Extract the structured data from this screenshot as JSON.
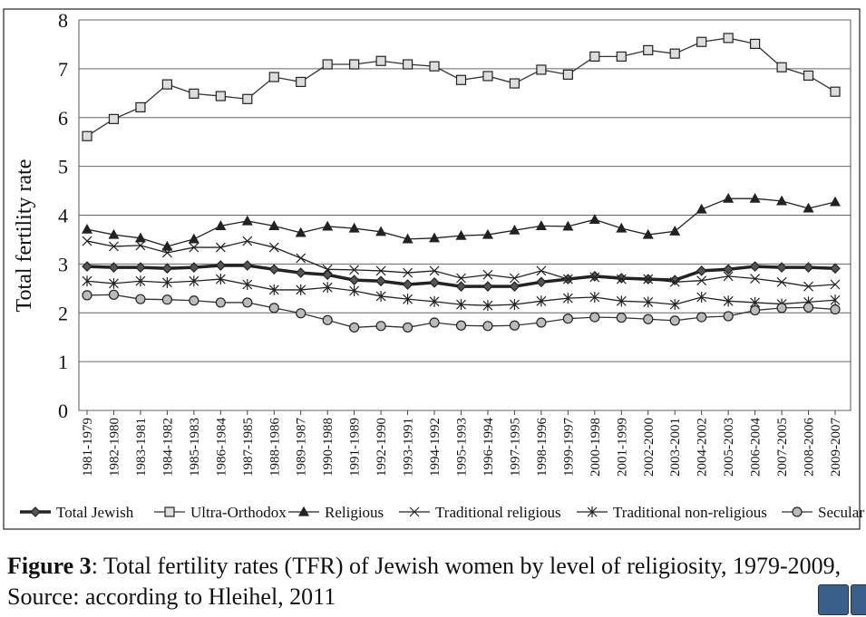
{
  "chart_data": {
    "type": "line",
    "y_label": "Total fertility rate",
    "categories": [
      "1981-1979",
      "1982-1980",
      "1983-1981",
      "1984-1982",
      "1985-1983",
      "1986-1984",
      "1987-1985",
      "1988-1986",
      "1989-1987",
      "1990-1988",
      "1991-1989",
      "1992-1990",
      "1993-1991",
      "1994-1992",
      "1995-1993",
      "1996-1994",
      "1997-1995",
      "1998-1996",
      "1999-1997",
      "2000-1998",
      "2001-1999",
      "2002-2000",
      "2003-2001",
      "2004-2002",
      "2005-2003",
      "2006-2004",
      "2007-2005",
      "2008-2006",
      "2009-2007"
    ],
    "series": [
      {
        "name": "Total Jewish",
        "color": "#222222",
        "marker": "diamond",
        "line_width": 3.5,
        "values": [
          2.95,
          2.93,
          2.93,
          2.91,
          2.93,
          2.97,
          2.97,
          2.89,
          2.82,
          2.78,
          2.67,
          2.65,
          2.58,
          2.62,
          2.54,
          2.54,
          2.54,
          2.63,
          2.69,
          2.75,
          2.71,
          2.69,
          2.67,
          2.86,
          2.89,
          2.95,
          2.93,
          2.93,
          2.91
        ]
      },
      {
        "name": "Ultra-Orthodox",
        "color": "#333333",
        "marker": "square",
        "line_width": 1.3,
        "values": [
          5.62,
          5.97,
          6.21,
          6.68,
          6.49,
          6.44,
          6.38,
          6.83,
          6.73,
          7.09,
          7.09,
          7.16,
          7.09,
          7.05,
          6.77,
          6.85,
          6.7,
          6.98,
          6.88,
          7.25,
          7.25,
          7.38,
          7.31,
          7.55,
          7.63,
          7.51,
          7.03,
          6.86,
          6.53
        ]
      },
      {
        "name": "Religious",
        "color": "#222222",
        "marker": "triangle",
        "line_width": 1.3,
        "values": [
          3.71,
          3.6,
          3.53,
          3.36,
          3.51,
          3.78,
          3.88,
          3.78,
          3.64,
          3.77,
          3.73,
          3.66,
          3.51,
          3.53,
          3.58,
          3.6,
          3.69,
          3.78,
          3.77,
          3.91,
          3.73,
          3.6,
          3.67,
          4.12,
          4.34,
          4.34,
          4.29,
          4.14,
          4.27
        ]
      },
      {
        "name": "Traditional religious",
        "color": "#222222",
        "marker": "x",
        "line_width": 1.3,
        "values": [
          3.47,
          3.36,
          3.38,
          3.23,
          3.34,
          3.34,
          3.47,
          3.34,
          3.12,
          2.89,
          2.88,
          2.86,
          2.82,
          2.86,
          2.71,
          2.78,
          2.71,
          2.86,
          2.69,
          2.73,
          2.69,
          2.69,
          2.63,
          2.66,
          2.75,
          2.7,
          2.63,
          2.54,
          2.58
        ]
      },
      {
        "name": "Traditional non-religious",
        "color": "#222222",
        "marker": "star",
        "line_width": 1.3,
        "values": [
          2.65,
          2.6,
          2.65,
          2.62,
          2.65,
          2.69,
          2.58,
          2.47,
          2.47,
          2.52,
          2.45,
          2.34,
          2.28,
          2.23,
          2.17,
          2.15,
          2.17,
          2.24,
          2.3,
          2.32,
          2.24,
          2.22,
          2.17,
          2.32,
          2.24,
          2.21,
          2.18,
          2.22,
          2.26
        ]
      },
      {
        "name": "Secular",
        "color": "#333333",
        "marker": "circle",
        "line_width": 1.3,
        "values": [
          2.36,
          2.37,
          2.28,
          2.27,
          2.25,
          2.21,
          2.21,
          2.1,
          1.99,
          1.85,
          1.7,
          1.73,
          1.7,
          1.8,
          1.74,
          1.73,
          1.74,
          1.8,
          1.88,
          1.91,
          1.9,
          1.87,
          1.84,
          1.91,
          1.93,
          2.05,
          2.1,
          2.11,
          2.07
        ]
      }
    ],
    "ylim": [
      0,
      8
    ],
    "yticks": [
      0,
      1,
      2,
      3,
      4,
      5,
      6,
      7,
      8
    ],
    "grid": true,
    "legend": "bottom",
    "caption": {
      "label": "Figure 3",
      "text": ": Total fertility rates (TFR) of Jewish women by level of religiosity, 1979-2009, Source: according to Hleihel, 2011"
    }
  }
}
